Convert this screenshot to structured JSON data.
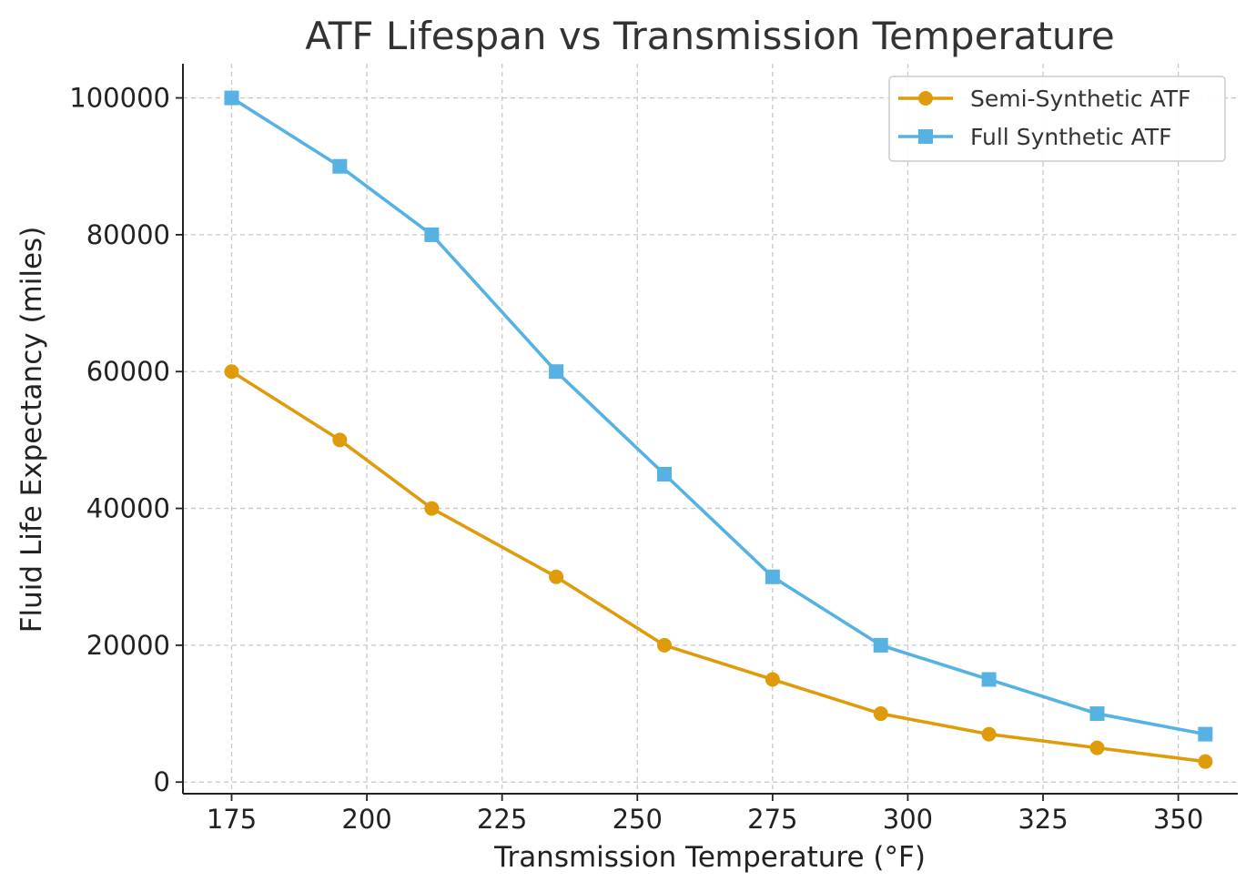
{
  "chart_data": {
    "type": "line",
    "title": "ATF Lifespan vs Transmission Temperature",
    "xlabel": "Transmission Temperature (°F)",
    "ylabel": "Fluid Life Expectancy (miles)",
    "x": [
      175,
      195,
      212,
      235,
      255,
      275,
      295,
      315,
      335,
      355
    ],
    "xlim": [
      166,
      361
    ],
    "ylim": [
      -1700,
      105000
    ],
    "xticks": [
      175,
      200,
      225,
      250,
      275,
      300,
      325,
      350
    ],
    "yticks": [
      0,
      20000,
      40000,
      60000,
      80000,
      100000
    ],
    "grid": true,
    "legend_position": "top-right",
    "series": [
      {
        "name": "Semi-Synthetic ATF",
        "color": "#e09b0b",
        "marker": "circle",
        "values": [
          60000,
          50000,
          40000,
          30000,
          20000,
          15000,
          10000,
          7000,
          5000,
          3000
        ]
      },
      {
        "name": "Full Synthetic ATF",
        "color": "#56b2e3",
        "marker": "square",
        "values": [
          100000,
          90000,
          80000,
          60000,
          45000,
          30000,
          20000,
          15000,
          10000,
          7000
        ]
      }
    ]
  }
}
